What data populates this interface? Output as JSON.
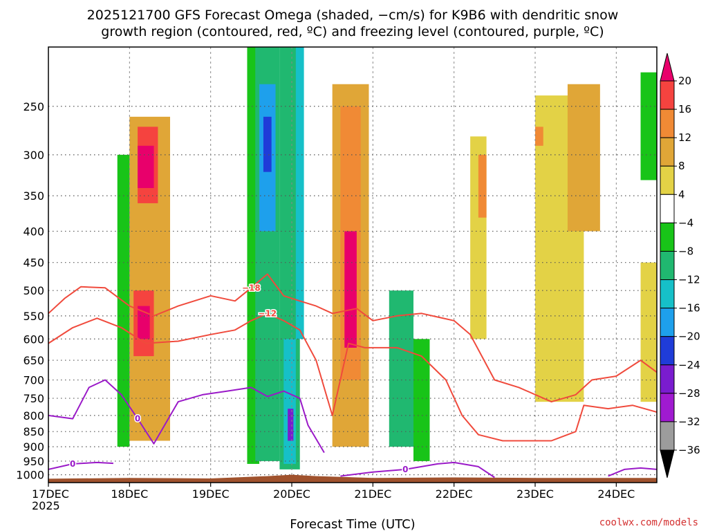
{
  "chart_data": {
    "type": "heatmap",
    "title_line1": "2025121700 GFS Forecast Omega (shaded, −cm/s) for K9B6 with dendritic snow",
    "title_line2": "growth region (contoured, red, ºC) and freezing level (contoured, purple, ºC)",
    "xlabel": "Forecast Time (UTC)",
    "credit": "coolwx.com/models",
    "x_ticks": [
      "17DEC",
      "18DEC",
      "19DEC",
      "20DEC",
      "21DEC",
      "22DEC",
      "23DEC",
      "24DEC"
    ],
    "x_year": "2025",
    "y_ticks": [
      "250",
      "300",
      "350",
      "400",
      "450",
      "500",
      "550",
      "600",
      "650",
      "700",
      "750",
      "800",
      "850",
      "900",
      "950",
      "1000"
    ],
    "y_range_hpa": [
      200,
      1030
    ],
    "x_range_days": [
      0,
      7.5
    ],
    "colorbar": {
      "labels": [
        "20",
        "16",
        "12",
        "8",
        "4",
        "−4",
        "−8",
        "−12",
        "−16",
        "−20",
        "−24",
        "−28",
        "−32",
        "−36"
      ],
      "colors": [
        "#e8006b",
        "#f5433f",
        "#f08a35",
        "#e0a637",
        "#e3d246",
        "#ffffff",
        "#18c418",
        "#20b870",
        "#16c0c8",
        "#1ea0ec",
        "#1f3cd8",
        "#7a1ccf",
        "#a01ad0",
        "#9c9c9c",
        "#000000"
      ]
    },
    "omega_cells": [
      {
        "t": [
          1.0,
          1.5
        ],
        "p": [
          260,
          880
        ],
        "v": 8
      },
      {
        "t": [
          1.1,
          1.35
        ],
        "p": [
          270,
          360
        ],
        "v": 16
      },
      {
        "t": [
          1.05,
          1.3
        ],
        "p": [
          500,
          640
        ],
        "v": 16
      },
      {
        "t": [
          1.1,
          1.3
        ],
        "p": [
          290,
          340
        ],
        "v": 21
      },
      {
        "t": [
          1.1,
          1.25
        ],
        "p": [
          530,
          600
        ],
        "v": 21
      },
      {
        "t": [
          0.85,
          1.0
        ],
        "p": [
          300,
          900
        ],
        "v": -6
      },
      {
        "t": [
          2.45,
          2.6
        ],
        "p": [
          200,
          960
        ],
        "v": -6
      },
      {
        "t": [
          2.55,
          2.85
        ],
        "p": [
          200,
          950
        ],
        "v": -10
      },
      {
        "t": [
          2.6,
          2.8
        ],
        "p": [
          230,
          400
        ],
        "v": -18
      },
      {
        "t": [
          2.65,
          2.75
        ],
        "p": [
          260,
          320
        ],
        "v": -22
      },
      {
        "t": [
          2.85,
          3.1
        ],
        "p": [
          200,
          980
        ],
        "v": -8
      },
      {
        "t": [
          2.9,
          3.05
        ],
        "p": [
          600,
          960
        ],
        "v": -14
      },
      {
        "t": [
          2.95,
          3.02
        ],
        "p": [
          780,
          880
        ],
        "v": -26
      },
      {
        "t": [
          3.05,
          3.15
        ],
        "p": [
          200,
          600
        ],
        "v": -14
      },
      {
        "t": [
          3.5,
          3.95
        ],
        "p": [
          230,
          900
        ],
        "v": 8
      },
      {
        "t": [
          3.6,
          3.85
        ],
        "p": [
          250,
          700
        ],
        "v": 14
      },
      {
        "t": [
          3.65,
          3.8
        ],
        "p": [
          400,
          620
        ],
        "v": 21
      },
      {
        "t": [
          4.2,
          4.5
        ],
        "p": [
          500,
          900
        ],
        "v": -8
      },
      {
        "t": [
          4.5,
          4.7
        ],
        "p": [
          600,
          950
        ],
        "v": -6
      },
      {
        "t": [
          5.2,
          5.4
        ],
        "p": [
          280,
          600
        ],
        "v": 6
      },
      {
        "t": [
          5.3,
          5.4
        ],
        "p": [
          300,
          380
        ],
        "v": 14
      },
      {
        "t": [
          6.0,
          6.6
        ],
        "p": [
          240,
          760
        ],
        "v": 6
      },
      {
        "t": [
          6.4,
          6.8
        ],
        "p": [
          230,
          400
        ],
        "v": 8
      },
      {
        "t": [
          6.0,
          6.1
        ],
        "p": [
          270,
          290
        ],
        "v": 12
      },
      {
        "t": [
          7.3,
          7.5
        ],
        "p": [
          220,
          330
        ],
        "v": -6
      },
      {
        "t": [
          7.3,
          7.5
        ],
        "p": [
          450,
          760
        ],
        "v": 6
      }
    ],
    "dgz_contours": [
      {
        "label": "−18",
        "points": [
          [
            0,
            545
          ],
          [
            0.2,
            515
          ],
          [
            0.4,
            493
          ],
          [
            0.7,
            495
          ],
          [
            1.0,
            530
          ],
          [
            1.3,
            550
          ],
          [
            1.6,
            530
          ],
          [
            2.0,
            510
          ],
          [
            2.3,
            520
          ],
          [
            2.5,
            495
          ],
          [
            2.7,
            470
          ],
          [
            2.9,
            510
          ],
          [
            3.1,
            520
          ],
          [
            3.3,
            530
          ],
          [
            3.5,
            545
          ],
          [
            3.8,
            535
          ],
          [
            4.0,
            560
          ],
          [
            4.3,
            550
          ],
          [
            4.6,
            545
          ],
          [
            5.0,
            560
          ],
          [
            5.2,
            590
          ],
          [
            5.5,
            700
          ],
          [
            5.8,
            720
          ],
          [
            6.2,
            760
          ],
          [
            6.5,
            740
          ],
          [
            6.7,
            700
          ],
          [
            7.0,
            690
          ],
          [
            7.3,
            650
          ],
          [
            7.5,
            680
          ]
        ]
      },
      {
        "label": "−12",
        "points": [
          [
            0,
            610
          ],
          [
            0.3,
            575
          ],
          [
            0.6,
            555
          ],
          [
            0.9,
            575
          ],
          [
            1.2,
            610
          ],
          [
            1.6,
            605
          ],
          [
            2.0,
            590
          ],
          [
            2.3,
            580
          ],
          [
            2.5,
            560
          ],
          [
            2.7,
            545
          ],
          [
            2.9,
            560
          ],
          [
            3.1,
            580
          ],
          [
            3.3,
            650
          ],
          [
            3.5,
            800
          ],
          [
            3.7,
            610
          ],
          [
            3.9,
            620
          ],
          [
            4.3,
            620
          ],
          [
            4.6,
            640
          ],
          [
            4.9,
            700
          ],
          [
            5.1,
            800
          ],
          [
            5.3,
            860
          ],
          [
            5.6,
            880
          ],
          [
            5.9,
            880
          ],
          [
            6.2,
            880
          ],
          [
            6.5,
            850
          ],
          [
            6.6,
            770
          ],
          [
            6.9,
            780
          ],
          [
            7.2,
            770
          ],
          [
            7.5,
            790
          ]
        ]
      },
      {
        "label": "0",
        "points": [
          [
            0,
            800
          ],
          [
            0.3,
            810
          ],
          [
            0.5,
            720
          ],
          [
            0.7,
            700
          ],
          [
            0.9,
            740
          ],
          [
            1.1,
            810
          ],
          [
            1.3,
            890
          ],
          [
            1.6,
            760
          ],
          [
            1.9,
            740
          ],
          [
            2.2,
            730
          ],
          [
            2.5,
            720
          ],
          [
            2.7,
            745
          ],
          [
            2.9,
            730
          ],
          [
            3.1,
            750
          ],
          [
            3.2,
            830
          ],
          [
            3.4,
            920
          ]
        ]
      }
    ],
    "freezing_contours": [
      {
        "label": "0",
        "points": [
          [
            0,
            980
          ],
          [
            0.3,
            960
          ],
          [
            0.6,
            955
          ],
          [
            0.8,
            958
          ]
        ]
      },
      {
        "label": "0",
        "points": [
          [
            3.6,
            1005
          ],
          [
            4.0,
            990
          ],
          [
            4.4,
            980
          ],
          [
            4.8,
            960
          ],
          [
            5.0,
            955
          ],
          [
            5.3,
            970
          ],
          [
            5.5,
            1010
          ]
        ]
      },
      {
        "label": "",
        "points": [
          [
            6.9,
            1005
          ],
          [
            7.1,
            980
          ],
          [
            7.3,
            975
          ],
          [
            7.5,
            980
          ]
        ]
      }
    ],
    "terrain_hpa": [
      [
        0,
        1015
      ],
      [
        1.0,
        1012
      ],
      [
        2.0,
        1014
      ],
      [
        2.7,
        1005
      ],
      [
        3.0,
        1000
      ],
      [
        3.3,
        1005
      ],
      [
        4.0,
        1012
      ],
      [
        5.0,
        1010
      ],
      [
        6.0,
        1012
      ],
      [
        7.5,
        1012
      ]
    ]
  }
}
